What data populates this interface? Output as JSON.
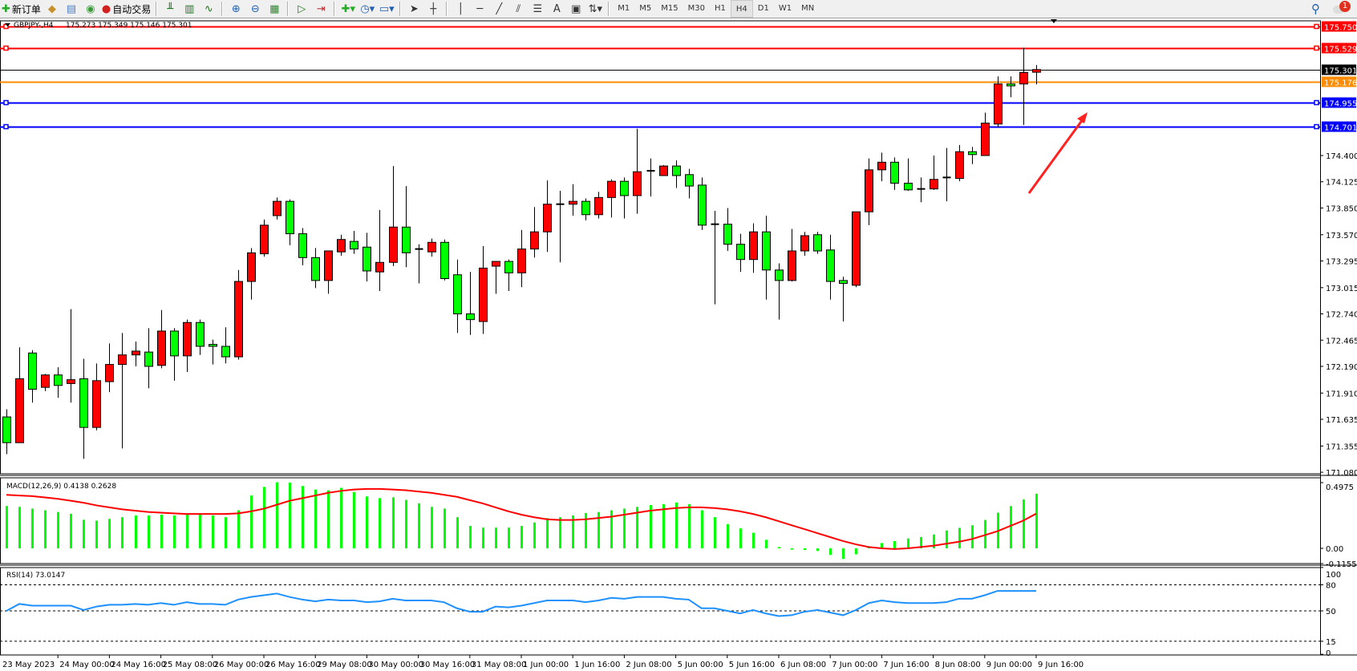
{
  "toolbar": {
    "new_order_label": "新订单",
    "auto_trading_label": "自动交易",
    "icons": [
      "new-order-icon",
      "history-icon",
      "terminal-icon",
      "signal-icon",
      "auto-trading-icon",
      "bar-chart-icon",
      "candlestick-icon",
      "line-chart-icon",
      "zoom-in-icon",
      "zoom-out-icon",
      "tile-windows-icon",
      "auto-scroll-icon",
      "chart-shift-icon",
      "add-indicator-icon",
      "periods-clock-icon",
      "templates-icon",
      "cursor-icon",
      "crosshair-icon",
      "vertical-line-icon",
      "horizontal-line-icon",
      "trendline-icon",
      "equidistant-channel-icon",
      "fibonacci-icon",
      "text-icon",
      "text-label-icon",
      "arrows-icon"
    ],
    "timeframes": [
      "M1",
      "M5",
      "M15",
      "M30",
      "H1",
      "H4",
      "D1",
      "W1",
      "MN"
    ],
    "active_timeframe": "H4",
    "notification_count": "1"
  },
  "chart_data": {
    "type": "candlestick",
    "symbol_legend": "GBPJPY-,H4",
    "ohlc_legend": "175.273 175.349 175.146 175.301",
    "colors": {
      "bull": "#ff0000",
      "bear": "#00ff00",
      "outline": "#000000"
    },
    "price_axis": {
      "ylim": [
        171.05,
        175.8
      ],
      "ticks": [
        "174.400",
        "174.125",
        "173.850",
        "173.570",
        "173.295",
        "173.015",
        "172.740",
        "172.465",
        "172.190",
        "171.910",
        "171.635",
        "171.355",
        "171.080"
      ]
    },
    "time_labels": [
      "23 May 2023",
      "24 May 00:00",
      "24 May 16:00",
      "25 May 08:00",
      "26 May 00:00",
      "26 May 16:00",
      "29 May 08:00",
      "30 May 00:00",
      "30 May 16:00",
      "31 May 08:00",
      "1 Jun 00:00",
      "1 Jun 16:00",
      "2 Jun 08:00",
      "5 Jun 00:00",
      "5 Jun 16:00",
      "6 Jun 08:00",
      "7 Jun 00:00",
      "7 Jun 16:00",
      "8 Jun 08:00",
      "9 Jun 00:00",
      "9 Jun 16:00"
    ],
    "candles_ohlc": [
      [
        171.66,
        171.74,
        171.27,
        171.39
      ],
      [
        171.39,
        172.39,
        171.39,
        172.06
      ],
      [
        172.33,
        172.36,
        171.81,
        171.95
      ],
      [
        171.97,
        172.11,
        171.93,
        172.1
      ],
      [
        172.1,
        172.18,
        171.86,
        171.99
      ],
      [
        172.01,
        172.79,
        171.81,
        172.05
      ],
      [
        172.06,
        172.27,
        171.22,
        171.55
      ],
      [
        171.55,
        172.22,
        171.52,
        172.04
      ],
      [
        172.03,
        172.43,
        171.92,
        172.21
      ],
      [
        172.21,
        172.54,
        171.33,
        172.31
      ],
      [
        172.31,
        172.45,
        172.19,
        172.35
      ],
      [
        172.34,
        172.59,
        171.96,
        172.19
      ],
      [
        172.2,
        172.78,
        172.17,
        172.56
      ],
      [
        172.56,
        172.59,
        172.04,
        172.3
      ],
      [
        172.3,
        172.68,
        172.13,
        172.65
      ],
      [
        172.65,
        172.68,
        172.31,
        172.4
      ],
      [
        172.42,
        172.47,
        172.21,
        172.4
      ],
      [
        172.4,
        172.6,
        172.22,
        172.29
      ],
      [
        172.29,
        173.2,
        172.26,
        173.08
      ],
      [
        173.08,
        173.43,
        172.89,
        173.38
      ],
      [
        173.37,
        173.73,
        173.34,
        173.67
      ],
      [
        173.77,
        173.96,
        173.73,
        173.92
      ],
      [
        173.92,
        173.94,
        173.46,
        173.58
      ],
      [
        173.58,
        173.64,
        173.25,
        173.33
      ],
      [
        173.33,
        173.43,
        173.01,
        173.09
      ],
      [
        173.09,
        173.4,
        172.95,
        173.4
      ],
      [
        173.39,
        173.57,
        173.35,
        173.52
      ],
      [
        173.5,
        173.61,
        173.37,
        173.42
      ],
      [
        173.44,
        173.59,
        173.08,
        173.19
      ],
      [
        173.18,
        173.83,
        172.98,
        173.28
      ],
      [
        173.28,
        174.29,
        173.24,
        173.65
      ],
      [
        173.65,
        174.08,
        173.23,
        173.38
      ],
      [
        173.42,
        173.47,
        173.06,
        173.42
      ],
      [
        173.39,
        173.53,
        173.34,
        173.49
      ],
      [
        173.49,
        173.52,
        173.09,
        173.11
      ],
      [
        173.15,
        173.31,
        172.54,
        172.74
      ],
      [
        172.74,
        173.18,
        172.52,
        172.68
      ],
      [
        172.66,
        173.45,
        172.53,
        173.22
      ],
      [
        173.24,
        173.29,
        172.95,
        173.29
      ],
      [
        173.29,
        173.31,
        172.98,
        173.17
      ],
      [
        173.17,
        173.62,
        173.02,
        173.42
      ],
      [
        173.42,
        173.86,
        173.33,
        173.6
      ],
      [
        173.6,
        174.14,
        173.39,
        173.89
      ],
      [
        173.89,
        174.03,
        173.28,
        173.89
      ],
      [
        173.89,
        174.1,
        173.77,
        173.92
      ],
      [
        173.92,
        173.95,
        173.72,
        173.78
      ],
      [
        173.78,
        174.02,
        173.74,
        173.96
      ],
      [
        173.96,
        174.15,
        173.75,
        174.13
      ],
      [
        174.13,
        174.17,
        173.74,
        173.98
      ],
      [
        173.98,
        174.68,
        173.79,
        174.23
      ],
      [
        174.24,
        174.37,
        173.97,
        174.24
      ],
      [
        174.19,
        174.3,
        174.19,
        174.29
      ],
      [
        174.29,
        174.35,
        174.06,
        174.19
      ],
      [
        174.2,
        174.26,
        173.95,
        174.08
      ],
      [
        174.09,
        174.17,
        173.62,
        173.67
      ],
      [
        173.68,
        173.82,
        172.84,
        173.68
      ],
      [
        173.68,
        173.85,
        173.4,
        173.47
      ],
      [
        173.47,
        173.58,
        173.18,
        173.31
      ],
      [
        173.31,
        173.69,
        173.17,
        173.6
      ],
      [
        173.6,
        173.77,
        172.89,
        173.2
      ],
      [
        173.2,
        173.27,
        172.68,
        173.09
      ],
      [
        173.09,
        173.63,
        173.08,
        173.4
      ],
      [
        173.4,
        173.6,
        173.35,
        173.56
      ],
      [
        173.57,
        173.6,
        173.37,
        173.4
      ],
      [
        173.41,
        173.57,
        172.89,
        173.08
      ],
      [
        173.09,
        173.13,
        172.66,
        173.06
      ],
      [
        173.04,
        173.81,
        173.02,
        173.81
      ],
      [
        173.81,
        174.37,
        173.67,
        174.25
      ],
      [
        174.25,
        174.43,
        174.13,
        174.33
      ],
      [
        174.33,
        174.38,
        174.04,
        174.11
      ],
      [
        174.11,
        174.37,
        174.03,
        174.04
      ],
      [
        174.05,
        174.17,
        173.91,
        174.05
      ],
      [
        174.05,
        174.4,
        174.04,
        174.15
      ],
      [
        174.16,
        174.48,
        173.92,
        174.17
      ],
      [
        174.16,
        174.51,
        174.13,
        174.44
      ],
      [
        174.44,
        174.49,
        174.31,
        174.41
      ],
      [
        174.4,
        174.85,
        174.4,
        174.74
      ],
      [
        174.73,
        175.23,
        174.7,
        175.15
      ],
      [
        175.15,
        175.23,
        175.01,
        175.13
      ],
      [
        175.15,
        175.53,
        174.72,
        175.27
      ],
      [
        175.273,
        175.349,
        175.146,
        175.301
      ]
    ],
    "horizontal_lines": [
      {
        "price": "175.750",
        "color": "#ff0000"
      },
      {
        "price": "175.529",
        "color": "#ff0000"
      },
      {
        "price": "175.301",
        "color": "#000000"
      },
      {
        "price": "175.176",
        "color": "#ff8c00"
      },
      {
        "price": "174.955",
        "color": "#0000ff"
      },
      {
        "price": "174.701",
        "color": "#0000ff"
      }
    ],
    "annotation_arrow_color": "#ff2020",
    "macd": {
      "label": "MACD(12,26,9) 0.4138 0.2628",
      "axis_labels": [
        "0.4975",
        "0.00",
        "-0.1155"
      ],
      "ylim": [
        -0.1155,
        0.4975
      ],
      "histogram_color": "#00ff00",
      "signal_color": "#ff0000",
      "histogram": [
        0.321,
        0.314,
        0.301,
        0.288,
        0.275,
        0.262,
        0.216,
        0.21,
        0.223,
        0.236,
        0.249,
        0.249,
        0.255,
        0.249,
        0.262,
        0.255,
        0.249,
        0.236,
        0.288,
        0.4,
        0.465,
        0.5,
        0.498,
        0.472,
        0.445,
        0.439,
        0.458,
        0.426,
        0.393,
        0.38,
        0.386,
        0.367,
        0.341,
        0.314,
        0.301,
        0.236,
        0.17,
        0.157,
        0.157,
        0.157,
        0.17,
        0.196,
        0.229,
        0.236,
        0.249,
        0.268,
        0.275,
        0.288,
        0.301,
        0.314,
        0.328,
        0.334,
        0.347,
        0.334,
        0.288,
        0.236,
        0.183,
        0.151,
        0.118,
        0.065,
        0.01,
        -0.01,
        -0.012,
        -0.02,
        -0.05,
        -0.08,
        -0.045,
        0.01,
        0.04,
        0.055,
        0.075,
        0.085,
        0.105,
        0.135,
        0.155,
        0.175,
        0.215,
        0.27,
        0.32,
        0.37,
        0.4138
      ],
      "signal": [
        0.405,
        0.4,
        0.395,
        0.385,
        0.375,
        0.36,
        0.345,
        0.325,
        0.31,
        0.295,
        0.285,
        0.275,
        0.27,
        0.265,
        0.26,
        0.26,
        0.26,
        0.26,
        0.265,
        0.28,
        0.3,
        0.33,
        0.36,
        0.38,
        0.4,
        0.42,
        0.435,
        0.445,
        0.45,
        0.45,
        0.445,
        0.44,
        0.43,
        0.42,
        0.405,
        0.39,
        0.365,
        0.34,
        0.31,
        0.28,
        0.255,
        0.235,
        0.22,
        0.215,
        0.215,
        0.22,
        0.23,
        0.24,
        0.255,
        0.27,
        0.285,
        0.295,
        0.305,
        0.31,
        0.31,
        0.305,
        0.295,
        0.28,
        0.26,
        0.235,
        0.205,
        0.175,
        0.145,
        0.115,
        0.085,
        0.055,
        0.03,
        0.01,
        0.0,
        -0.005,
        0.0,
        0.01,
        0.02,
        0.035,
        0.05,
        0.07,
        0.1,
        0.13,
        0.17,
        0.21,
        0.2628
      ]
    },
    "rsi": {
      "label": "RSI(14) 73.0147",
      "axis_labels": [
        "100",
        "80",
        "50",
        "15",
        "0"
      ],
      "levels": [
        80,
        50,
        15
      ],
      "ylim": [
        0,
        100
      ],
      "line_color": "#1e90ff",
      "values": [
        50,
        58,
        56,
        56,
        56,
        56,
        51,
        55,
        57,
        57,
        58,
        57,
        59,
        57,
        60,
        58,
        58,
        57,
        63,
        66,
        68,
        70,
        66,
        63,
        61,
        63,
        62,
        62,
        60,
        61,
        64,
        62,
        62,
        62,
        60,
        53,
        49,
        49,
        55,
        54,
        56,
        59,
        62,
        62,
        62,
        60,
        62,
        65,
        64,
        66,
        66,
        66,
        64,
        63,
        53,
        53,
        50,
        47,
        51,
        47,
        44,
        45,
        49,
        51,
        48,
        45,
        51,
        59,
        62,
        60,
        59,
        59,
        59,
        60,
        64,
        64,
        68,
        73,
        73,
        73,
        73.0147
      ]
    }
  }
}
